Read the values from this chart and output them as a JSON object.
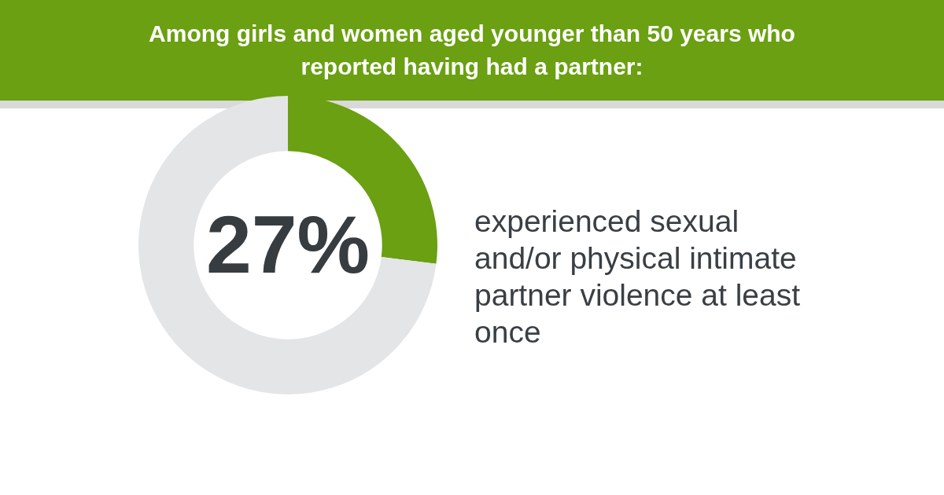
{
  "chart_data": {
    "type": "donut",
    "title": "Among girls and women aged younger than 50 years who reported having had a partner:",
    "categories": [
      null,
      null
    ],
    "values": [
      27,
      73
    ],
    "colors": [
      "#6aa011",
      "#e4e5e7"
    ],
    "value_labels": [
      "27%",
      null
    ],
    "annotations": [
      "experienced sexual and/or physical intimate partner violence at least once"
    ]
  }
}
